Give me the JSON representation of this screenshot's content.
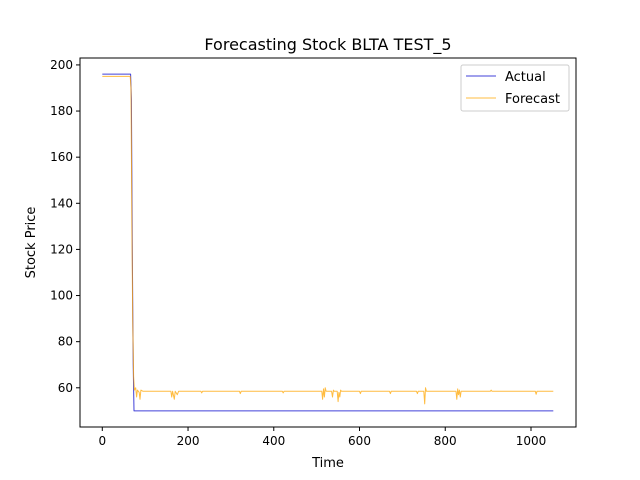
{
  "chart_data": {
    "type": "line",
    "title": "Forecasting Stock BLTA TEST_5",
    "xlabel": "Time",
    "ylabel": "Stock Price",
    "xlim": [
      -52,
      1105
    ],
    "ylim": [
      43,
      203
    ],
    "xticks": [
      0,
      200,
      400,
      600,
      800,
      1000
    ],
    "yticks": [
      60,
      80,
      100,
      120,
      140,
      160,
      180,
      200
    ],
    "grid": false,
    "legend": "top-right",
    "series": [
      {
        "name": "Actual",
        "color": "#0000cc",
        "points": [
          [
            0,
            196
          ],
          [
            66,
            196
          ],
          [
            68,
            185
          ],
          [
            70,
            120
          ],
          [
            72,
            70
          ],
          [
            74,
            50
          ],
          [
            1052,
            50
          ]
        ]
      },
      {
        "name": "Forecast",
        "color": "#ffa500",
        "points": [
          [
            0,
            195
          ],
          [
            65,
            195
          ],
          [
            67,
            190
          ],
          [
            69,
            130
          ],
          [
            71,
            90
          ],
          [
            73,
            65
          ],
          [
            75,
            59
          ],
          [
            78,
            60
          ],
          [
            80,
            56
          ],
          [
            82,
            59
          ],
          [
            86,
            58
          ],
          [
            88,
            55
          ],
          [
            90,
            59
          ],
          [
            95,
            58.5
          ],
          [
            100,
            58.5
          ],
          [
            160,
            58.5
          ],
          [
            162,
            56
          ],
          [
            164,
            58.5
          ],
          [
            168,
            55
          ],
          [
            170,
            58.5
          ],
          [
            175,
            57
          ],
          [
            178,
            58.5
          ],
          [
            230,
            58.5
          ],
          [
            232,
            57.8
          ],
          [
            234,
            58.5
          ],
          [
            320,
            58.5
          ],
          [
            322,
            57.5
          ],
          [
            324,
            58.5
          ],
          [
            420,
            58.5
          ],
          [
            422,
            57.8
          ],
          [
            424,
            58.5
          ],
          [
            512,
            58.5
          ],
          [
            514,
            55
          ],
          [
            516,
            59.5
          ],
          [
            518,
            56
          ],
          [
            520,
            60
          ],
          [
            522,
            58.5
          ],
          [
            535,
            58.5
          ],
          [
            537,
            56
          ],
          [
            539,
            59
          ],
          [
            541,
            58.5
          ],
          [
            548,
            58.5
          ],
          [
            550,
            54
          ],
          [
            552,
            58
          ],
          [
            554,
            56
          ],
          [
            556,
            59
          ],
          [
            558,
            58.5
          ],
          [
            600,
            58.5
          ],
          [
            602,
            57.5
          ],
          [
            604,
            58.5
          ],
          [
            670,
            58.5
          ],
          [
            672,
            57.5
          ],
          [
            674,
            58.5
          ],
          [
            733,
            58.5
          ],
          [
            735,
            57.5
          ],
          [
            737,
            58.5
          ],
          [
            750,
            58.5
          ],
          [
            752,
            53
          ],
          [
            754,
            60
          ],
          [
            756,
            58.5
          ],
          [
            825,
            58.5
          ],
          [
            827,
            55
          ],
          [
            829,
            59.5
          ],
          [
            831,
            57
          ],
          [
            833,
            59
          ],
          [
            835,
            56
          ],
          [
            837,
            58.5
          ],
          [
            905,
            58.5
          ],
          [
            907,
            59
          ],
          [
            909,
            58.5
          ],
          [
            1010,
            58.5
          ],
          [
            1012,
            57.2
          ],
          [
            1014,
            58.5
          ],
          [
            1052,
            58.5
          ]
        ]
      }
    ]
  }
}
